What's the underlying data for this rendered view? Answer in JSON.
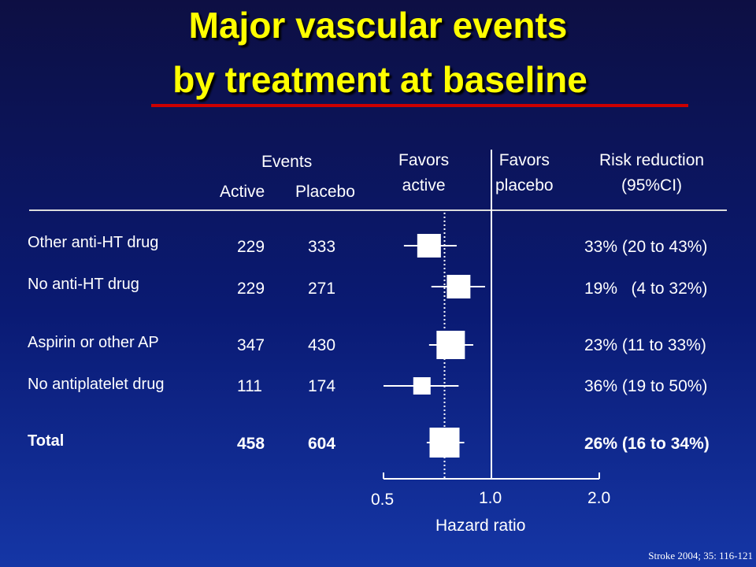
{
  "title": {
    "line1": "Major vascular events",
    "line2": "by treatment at baseline"
  },
  "headers": {
    "events": "Events",
    "active": "Active",
    "placebo": "Placebo",
    "favors_active_1": "Favors",
    "favors_active_2": "active",
    "favors_placebo_1": "Favors",
    "favors_placebo_2": "placebo",
    "risk_reduction_1": "Risk reduction",
    "risk_reduction_2": "(95%CI)"
  },
  "chart_data": {
    "type": "forest",
    "xlabel": "Hazard ratio",
    "x_scale": "log",
    "xlim": [
      0.5,
      2.0
    ],
    "x_ticks": [
      "0.5",
      "1.0",
      "2.0"
    ],
    "reference_line": 1.0,
    "overall_estimate_line": 0.74,
    "rows": [
      {
        "label": "Other anti-HT drug",
        "active": "229",
        "placebo": "333",
        "risk_reduction": "33% (20 to 43%)",
        "hr": 0.67,
        "ci": [
          0.57,
          0.8
        ],
        "bold": false
      },
      {
        "label": "No anti-HT drug",
        "active": "229",
        "placebo": "271",
        "risk_reduction": "19%   (4 to 32%)",
        "hr": 0.81,
        "ci": [
          0.68,
          0.96
        ],
        "bold": false
      },
      {
        "label": "Aspirin or other AP",
        "active": "347",
        "placebo": "430",
        "risk_reduction": "23% (11 to 33%)",
        "hr": 0.77,
        "ci": [
          0.67,
          0.89
        ],
        "bold": false
      },
      {
        "label": "No antiplatelet drug",
        "active": "111",
        "placebo": "174",
        "risk_reduction": "36% (19 to 50%)",
        "hr": 0.64,
        "ci": [
          0.5,
          0.81
        ],
        "bold": false
      },
      {
        "label": "Total",
        "active": "458",
        "placebo": "604",
        "risk_reduction": "26% (16 to 34%)",
        "hr": 0.74,
        "ci": [
          0.66,
          0.84
        ],
        "bold": true
      }
    ]
  },
  "citation": "Stroke 2004; 35: 116-121",
  "colors": {
    "title": "#ffff00",
    "title_rule": "#cc0000",
    "text": "#ffffff"
  }
}
